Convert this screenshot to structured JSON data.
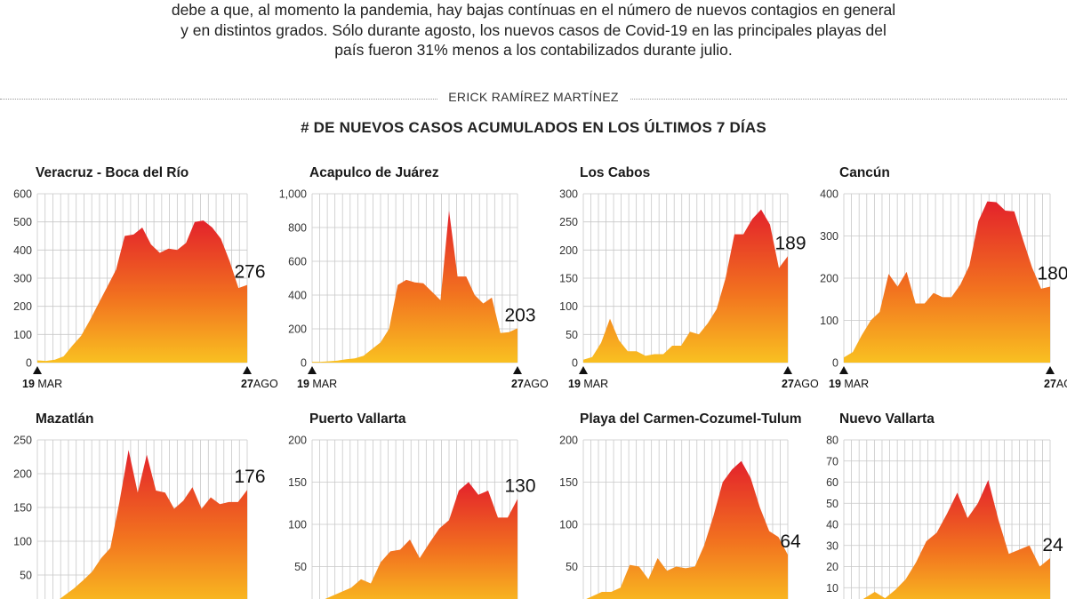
{
  "intro": [
    "debe a que, al momento la pandemia, hay bajas contínuas en el número de nuevos contagios en general",
    "y en distintos grados. Sólo durante agosto, los nuevos casos de Covid-19 en las principales playas del",
    "país fueron 31% menos a los contabilizados durante julio."
  ],
  "byline": "ERICK RAMÍREZ MARTÍNEZ",
  "main_title": "# DE NUEVOS CASOS ACUMULADOS EN LOS ÚLTIMOS 7 DÍAS",
  "colors": {
    "top": "#e3222b",
    "mid": "#f2731f",
    "bottom": "#f9c021",
    "grid": "#c8c8c8"
  },
  "chart_data": [
    {
      "type": "area",
      "title": "Veracruz - Boca del Río",
      "x_start": "19 MAR",
      "x_end": "27 AGO",
      "yticks": [
        0,
        100,
        200,
        300,
        400,
        500,
        600
      ],
      "ytick_labels": [
        "0",
        "100",
        "200",
        "300",
        "400",
        "500",
        "600"
      ],
      "ylim": [
        0,
        600
      ],
      "values": [
        8,
        6,
        10,
        22,
        60,
        95,
        150,
        210,
        270,
        330,
        450,
        455,
        480,
        420,
        390,
        405,
        400,
        425,
        500,
        505,
        480,
        440,
        360,
        265,
        276
      ],
      "last_label": "276",
      "grid": true
    },
    {
      "type": "area",
      "title": "Acapulco de Juárez",
      "x_start": "19 MAR",
      "x_end": "27 AGO",
      "yticks": [
        0,
        200,
        400,
        600,
        800,
        1000
      ],
      "ytick_labels": [
        "0",
        "200",
        "400",
        "600",
        "800",
        "1,000"
      ],
      "ylim": [
        0,
        1000
      ],
      "values": [
        5,
        5,
        8,
        12,
        20,
        25,
        40,
        80,
        120,
        200,
        460,
        490,
        475,
        470,
        420,
        370,
        900,
        510,
        510,
        400,
        350,
        385,
        175,
        180,
        203
      ],
      "last_label": "203",
      "grid": true
    },
    {
      "type": "area",
      "title": "Los Cabos",
      "x_start": "19 MAR",
      "x_end": "27 AGO",
      "yticks": [
        0,
        50,
        100,
        150,
        200,
        250,
        300
      ],
      "ytick_labels": [
        "0",
        "50",
        "100",
        "150",
        "200",
        "250",
        "300"
      ],
      "ylim": [
        0,
        300
      ],
      "values": [
        5,
        10,
        35,
        78,
        40,
        20,
        20,
        12,
        15,
        15,
        30,
        30,
        55,
        50,
        70,
        95,
        150,
        228,
        228,
        255,
        272,
        245,
        168,
        189
      ],
      "last_label": "189",
      "grid": true
    },
    {
      "type": "area",
      "title": "Cancún",
      "x_start": "19 MAR",
      "x_end": "27 AGO",
      "yticks": [
        0,
        100,
        200,
        300,
        400
      ],
      "ytick_labels": [
        "0",
        "100",
        "200",
        "300",
        "400"
      ],
      "ylim": [
        0,
        400
      ],
      "values": [
        12,
        25,
        65,
        100,
        120,
        210,
        180,
        215,
        140,
        140,
        165,
        155,
        155,
        185,
        230,
        335,
        382,
        380,
        360,
        358,
        290,
        225,
        175,
        180
      ],
      "last_label": "180",
      "grid": true
    },
    {
      "type": "area",
      "title": "Mazatlán",
      "ylim": [
        0,
        250
      ],
      "yticks": [
        50,
        100,
        150,
        200,
        250
      ],
      "ytick_labels": [
        "50",
        "100",
        "150",
        "200",
        "250"
      ],
      "values": [
        8,
        5,
        10,
        20,
        30,
        42,
        55,
        75,
        90,
        158,
        235,
        172,
        228,
        175,
        172,
        148,
        160,
        180,
        148,
        165,
        155,
        158,
        158,
        176
      ],
      "last_label": "176",
      "grid": true
    },
    {
      "type": "area",
      "title": "Puerto Vallarta",
      "ylim": [
        0,
        200
      ],
      "yticks": [
        50,
        100,
        150,
        200
      ],
      "ytick_labels": [
        "50",
        "100",
        "150",
        "200"
      ],
      "values": [
        5,
        10,
        15,
        20,
        25,
        35,
        30,
        55,
        68,
        70,
        82,
        60,
        78,
        95,
        105,
        140,
        150,
        135,
        140,
        108,
        108,
        130
      ],
      "last_label": "130",
      "grid": true
    },
    {
      "type": "area",
      "title": "Playa del Carmen-Cozumel-Tulum",
      "ylim": [
        0,
        200
      ],
      "yticks": [
        50,
        100,
        150,
        200
      ],
      "ytick_labels": [
        "50",
        "100",
        "150",
        "200"
      ],
      "values": [
        10,
        15,
        20,
        20,
        25,
        52,
        50,
        35,
        60,
        45,
        50,
        48,
        50,
        75,
        110,
        150,
        165,
        175,
        155,
        120,
        92,
        85,
        64
      ],
      "last_label": "64",
      "grid": true
    },
    {
      "type": "area",
      "title": "Nuevo Vallarta",
      "ylim": [
        0,
        80
      ],
      "yticks": [
        10,
        20,
        30,
        40,
        50,
        60,
        70,
        80
      ],
      "ytick_labels": [
        "10",
        "20",
        "30",
        "40",
        "50",
        "60",
        "70",
        "80"
      ],
      "values": [
        1,
        2,
        5,
        8,
        5,
        9,
        14,
        22,
        32,
        36,
        45,
        55,
        43,
        50,
        61,
        42,
        26,
        28,
        30,
        20,
        24
      ],
      "last_label": "24",
      "grid": true
    }
  ]
}
